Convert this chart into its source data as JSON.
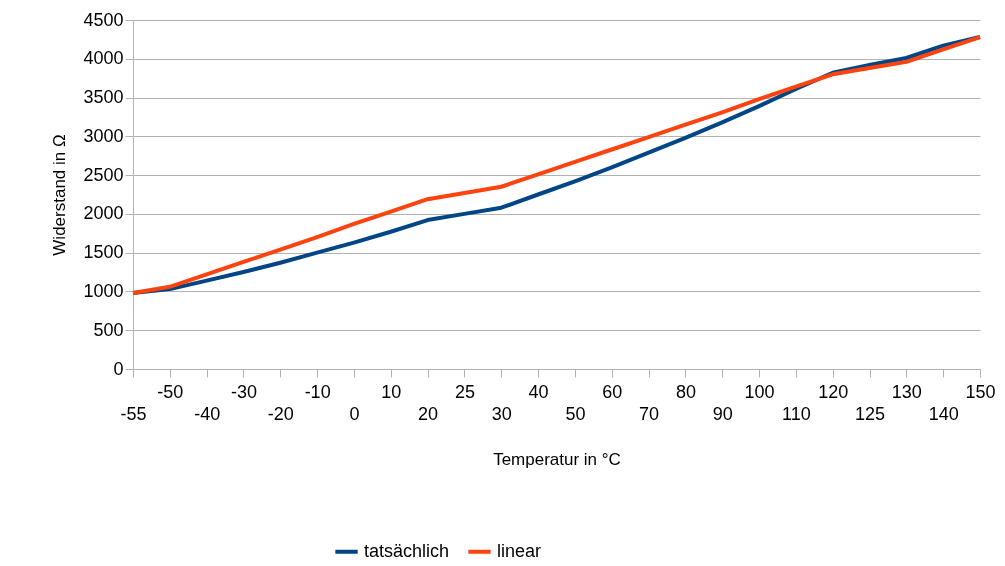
{
  "chart_data": {
    "type": "line",
    "xlabel": "Temperatur in °C",
    "ylabel": "Widerstand in Ω",
    "categories": [
      "-55",
      "-50",
      "-40",
      "-30",
      "-20",
      "-10",
      "0",
      "10",
      "20",
      "25",
      "30",
      "40",
      "50",
      "60",
      "70",
      "80",
      "90",
      "100",
      "110",
      "120",
      "125",
      "130",
      "140",
      "150"
    ],
    "series": [
      {
        "name": "tatsächlich",
        "color": "#004586",
        "values": [
          980,
          1030,
          1140,
          1250,
          1370,
          1500,
          1630,
          1770,
          1920,
          2000,
          2080,
          2250,
          2420,
          2600,
          2790,
          2980,
          3180,
          3390,
          3610,
          3820,
          3920,
          4010,
          4170,
          4280
        ]
      },
      {
        "name": "linear",
        "color": "#ff420e",
        "values": [
          980,
          1060,
          1220,
          1380,
          1540,
          1700,
          1870,
          2030,
          2190,
          2270,
          2350,
          2510,
          2670,
          2830,
          2990,
          3150,
          3310,
          3480,
          3640,
          3800,
          3880,
          3960,
          4120,
          4280
        ]
      }
    ],
    "ylim": [
      0,
      4500
    ],
    "yticks": [
      0,
      500,
      1000,
      1500,
      2000,
      2500,
      3000,
      3500,
      4000,
      4500
    ],
    "grid": "y",
    "legend": "bottom",
    "marker": "none",
    "line_style": "solid"
  }
}
